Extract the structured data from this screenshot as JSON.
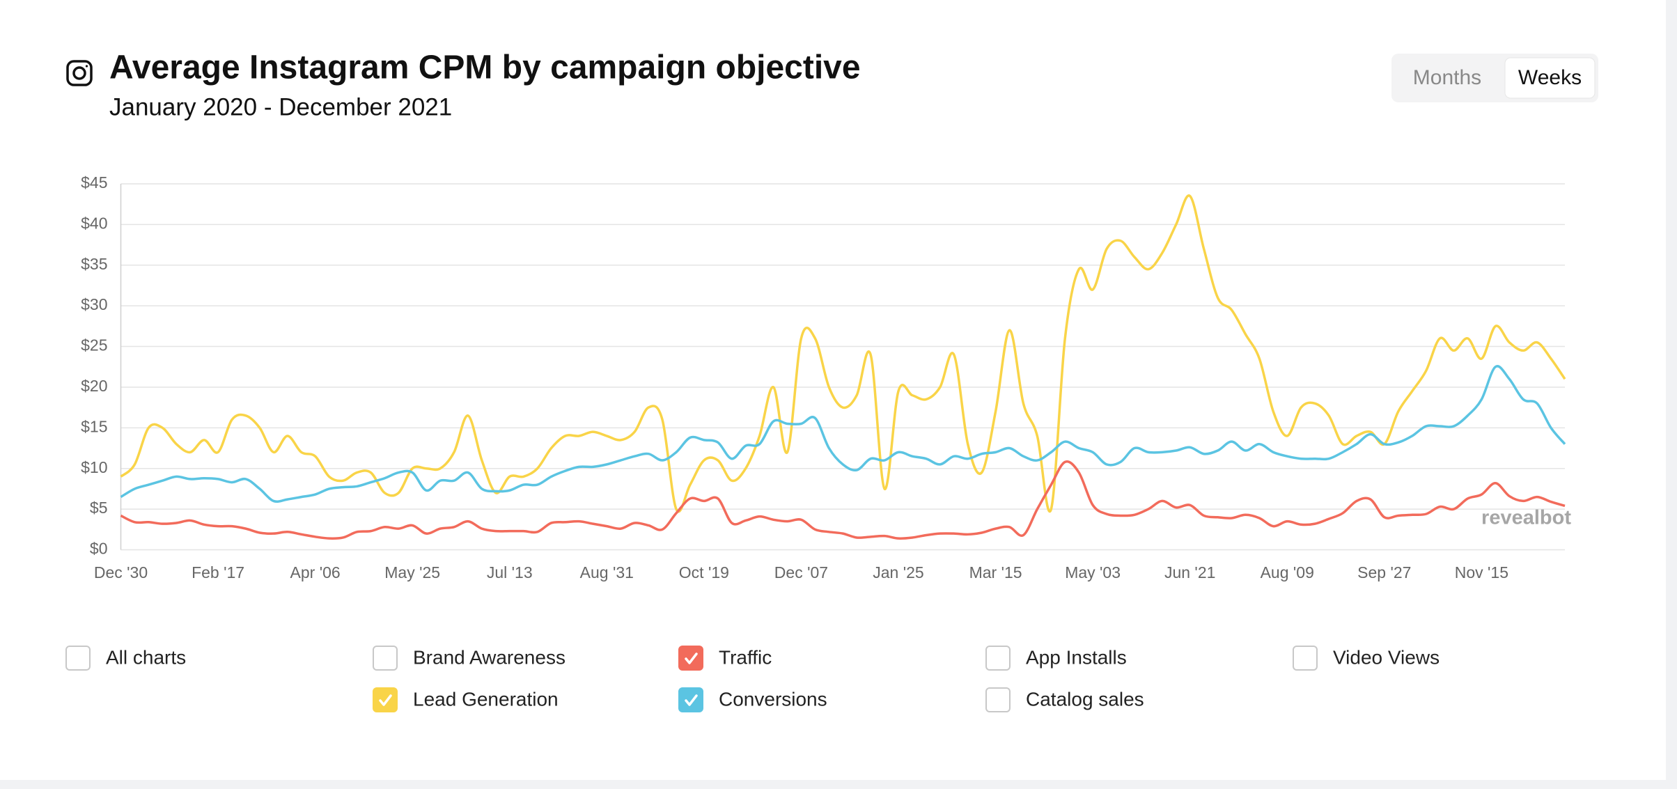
{
  "chart_data": {
    "type": "line",
    "title": "Average Instagram CPM by campaign objective",
    "subtitle": "January 2020 - December 2021",
    "view_options": [
      "Months",
      "Weeks"
    ],
    "selected_view": 1,
    "watermark": "revealbot",
    "grid": true,
    "smooth": true,
    "categories": [
      "Dec '30",
      null,
      null,
      null,
      null,
      null,
      null,
      "Feb '17",
      null,
      null,
      null,
      null,
      null,
      null,
      "Apr '06",
      null,
      null,
      null,
      null,
      null,
      null,
      "May '25",
      null,
      null,
      null,
      null,
      null,
      null,
      "Jul '13",
      null,
      null,
      null,
      null,
      null,
      null,
      "Aug '31",
      null,
      null,
      null,
      null,
      null,
      null,
      "Oct '19",
      null,
      null,
      null,
      null,
      null,
      null,
      "Dec '07",
      null,
      null,
      null,
      null,
      null,
      null,
      "Jan '25",
      null,
      null,
      null,
      null,
      null,
      null,
      "Mar '15",
      null,
      null,
      null,
      null,
      null,
      null,
      "May '03",
      null,
      null,
      null,
      null,
      null,
      null,
      "Jun '21",
      null,
      null,
      null,
      null,
      null,
      null,
      "Aug '09",
      null,
      null,
      null,
      null,
      null,
      null,
      "Sep '27",
      null,
      null,
      null,
      null,
      null,
      null,
      "Nov '15",
      null,
      null,
      null,
      null,
      null,
      null
    ],
    "ylim": [
      0,
      45
    ],
    "yticks": [
      {
        "value": 0,
        "label": "$0"
      },
      {
        "value": 5,
        "label": "$5"
      },
      {
        "value": 10,
        "label": "$10"
      },
      {
        "value": 15,
        "label": "$15"
      },
      {
        "value": 20,
        "label": "$20"
      },
      {
        "value": 25,
        "label": "$25"
      },
      {
        "value": 30,
        "label": "$30"
      },
      {
        "value": 35,
        "label": "$35"
      },
      {
        "value": 40,
        "label": "$40"
      },
      {
        "value": 45,
        "label": "$45"
      }
    ],
    "series": [
      {
        "name": "Lead Generation",
        "color": "#f9d448",
        "values": [
          9,
          10.5,
          15,
          15,
          13,
          12,
          13.5,
          12,
          16,
          16.5,
          15,
          12,
          14,
          12,
          11.5,
          9,
          8.5,
          9.5,
          9.5,
          7,
          7,
          10,
          10,
          10,
          12,
          16.5,
          11,
          7,
          9,
          9,
          10,
          12.5,
          14,
          14,
          14.5,
          14,
          13.5,
          14.5,
          17.5,
          16,
          5,
          8,
          11,
          11,
          8.5,
          10,
          14,
          20,
          12,
          26,
          26,
          20,
          17.5,
          19,
          24,
          7.5,
          19.5,
          19,
          18.5,
          20,
          24,
          13,
          9.5,
          17,
          27,
          18,
          14,
          5,
          26,
          34.5,
          32,
          37,
          38,
          36,
          34.5,
          36.5,
          40,
          43.5,
          37,
          31,
          29.5,
          26.5,
          23.5,
          17,
          14,
          17.5,
          18,
          16.5,
          13,
          14,
          14.5,
          13,
          17,
          19.5,
          22,
          26,
          24.5,
          26,
          23.5,
          27.5,
          25.5,
          24.5,
          25.5,
          23.5,
          21
        ]
      },
      {
        "name": "Conversions",
        "color": "#5bc4e2",
        "values": [
          6.5,
          7.5,
          8,
          8.5,
          9,
          8.7,
          8.8,
          8.7,
          8.3,
          8.7,
          7.5,
          6,
          6.2,
          6.5,
          6.8,
          7.5,
          7.7,
          7.8,
          8.3,
          8.8,
          9.5,
          9.5,
          7.3,
          8.5,
          8.5,
          9.5,
          7.5,
          7.2,
          7.3,
          8,
          8,
          9,
          9.7,
          10.2,
          10.2,
          10.5,
          11,
          11.5,
          11.8,
          11,
          12,
          13.8,
          13.5,
          13.2,
          11.2,
          12.8,
          13,
          15.8,
          15.5,
          15.5,
          16.2,
          12.5,
          10.5,
          9.8,
          11.2,
          11,
          12,
          11.5,
          11.2,
          10.5,
          11.5,
          11.2,
          11.8,
          12,
          12.5,
          11.5,
          11,
          12,
          13.3,
          12.5,
          12,
          10.5,
          10.8,
          12.5,
          12,
          12,
          12.2,
          12.6,
          11.8,
          12.2,
          13.3,
          12.2,
          13,
          12,
          11.5,
          11.2,
          11.2,
          11.2,
          12,
          13,
          14.2,
          13,
          13.2,
          14,
          15.2,
          15.2,
          15.2,
          16.5,
          18.5,
          22.5,
          21,
          18.5,
          18,
          15,
          13
        ]
      },
      {
        "name": "Traffic",
        "color": "#f26b5b",
        "values": [
          4.2,
          3.4,
          3.4,
          3.2,
          3.3,
          3.6,
          3.1,
          2.9,
          2.9,
          2.6,
          2.1,
          2,
          2.2,
          1.9,
          1.6,
          1.4,
          1.5,
          2.2,
          2.3,
          2.8,
          2.6,
          3,
          2,
          2.6,
          2.8,
          3.5,
          2.6,
          2.3,
          2.3,
          2.3,
          2.2,
          3.3,
          3.4,
          3.5,
          3.2,
          2.9,
          2.6,
          3.3,
          3,
          2.5,
          4.5,
          6.3,
          6,
          6.3,
          3.3,
          3.6,
          4.1,
          3.7,
          3.5,
          3.7,
          2.5,
          2.2,
          2,
          1.5,
          1.6,
          1.7,
          1.4,
          1.5,
          1.8,
          2,
          2,
          1.9,
          2.1,
          2.6,
          2.8,
          1.8,
          5,
          8,
          10.8,
          9.5,
          5.5,
          4.4,
          4.2,
          4.3,
          5,
          6,
          5.2,
          5.5,
          4.2,
          4,
          3.9,
          4.3,
          3.9,
          2.9,
          3.5,
          3.1,
          3.2,
          3.8,
          4.5,
          6,
          6.2,
          4,
          4.2,
          4.3,
          4.4,
          5.3,
          5,
          6.3,
          6.8,
          8.2,
          6.6,
          6,
          6.5,
          5.9,
          5.4
        ]
      }
    ],
    "unselected_objectives": [
      "All charts",
      "Brand Awareness",
      "App Installs",
      "Video Views",
      "Catalog sales"
    ]
  }
}
